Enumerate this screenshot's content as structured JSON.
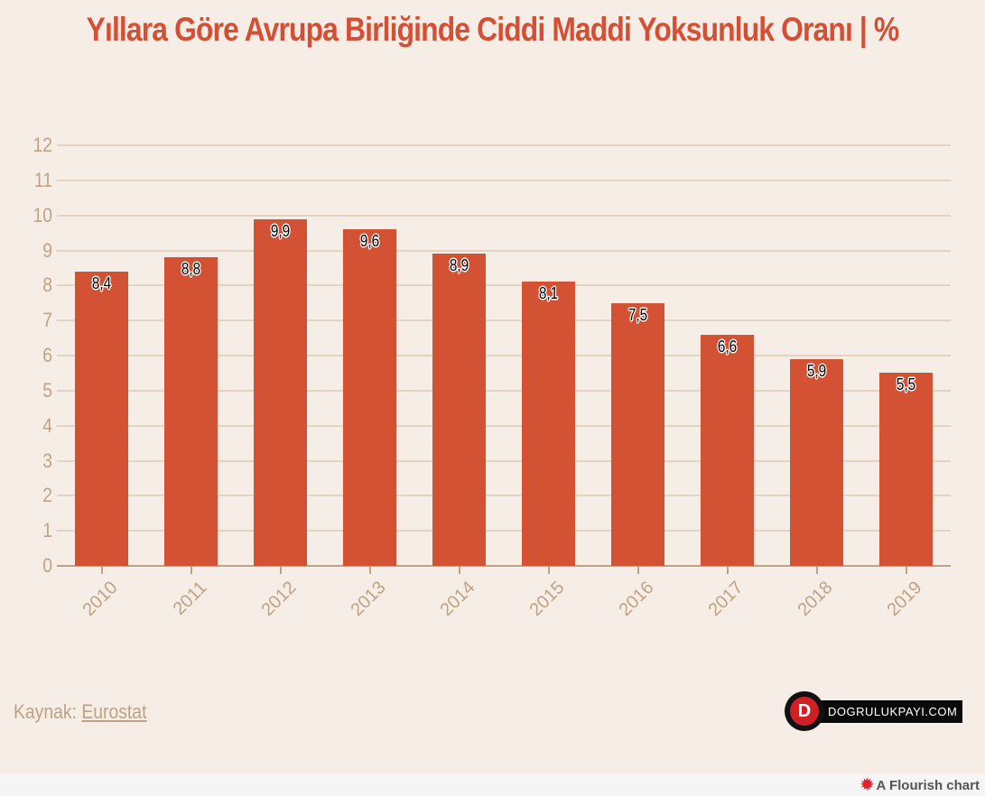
{
  "title": "Yıllara Göre Avrupa Birliğinde Ciddi Maddi Yoksunluk Oranı | %",
  "chart_data": {
    "type": "bar",
    "title": "Yıllara Göre Avrupa Birliğinde Ciddi Maddi Yoksunluk Oranı | %",
    "categories": [
      "2010",
      "2011",
      "2012",
      "2013",
      "2014",
      "2015",
      "2016",
      "2017",
      "2018",
      "2019"
    ],
    "values": [
      8.4,
      8.8,
      9.9,
      9.6,
      8.9,
      8.1,
      7.5,
      6.6,
      5.9,
      5.5
    ],
    "value_labels": [
      "8,4",
      "8,8",
      "9,9",
      "9,6",
      "8,9",
      "8,1",
      "7,5",
      "6,6",
      "5,9",
      "5,5"
    ],
    "xlabel": "",
    "ylabel": "",
    "ylim": [
      0,
      12
    ],
    "yticks": [
      "0",
      "1",
      "2",
      "3",
      "4",
      "5",
      "6",
      "7",
      "8",
      "9",
      "10",
      "11",
      "12"
    ],
    "grid": true,
    "legend": "none",
    "bar_color": "#d45234"
  },
  "source": {
    "prefix": "Kaynak:",
    "link_text": "Eurostat"
  },
  "logo": {
    "text": "DOGRULUKPAYI.COM"
  },
  "footer": {
    "flourish_label": "A Flourish chart"
  },
  "colors": {
    "background": "#f5ede6",
    "title": "#d44f33",
    "axis_text": "#c0a382",
    "grid": "#e3d3c3"
  }
}
